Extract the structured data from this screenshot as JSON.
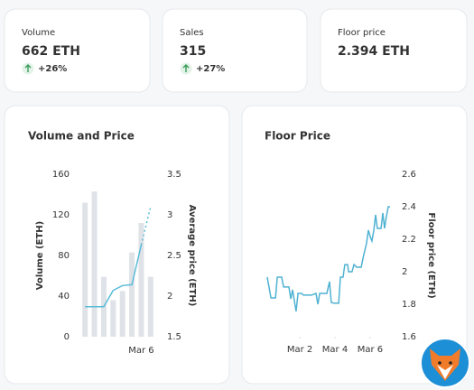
{
  "stats": [
    {
      "label": "Volume",
      "value": "662 ETH",
      "change": "+26%"
    },
    {
      "label": "Sales",
      "value": "315",
      "change": "+27%"
    },
    {
      "label": "Floor price",
      "value": "2.394 ETH"
    }
  ],
  "chart_data": [
    {
      "type": "bar",
      "title": "Volume and Price",
      "ylabel": "Volume (ETH)",
      "y2label": "Average price (ETH)",
      "categories": [
        null,
        null,
        null,
        null,
        null,
        null,
        "Mar 6",
        null
      ],
      "bars": {
        "color": "#dfe2e7",
        "values": [
          132,
          143,
          59,
          36,
          45,
          83,
          112,
          59
        ]
      },
      "line": {
        "color": "#5bbcd8",
        "values": [
          1.87,
          1.87,
          1.87,
          2.07,
          2.13,
          2.14,
          2.63,
          null
        ]
      },
      "line_projection": {
        "color": "#5bbcd8",
        "dashed": true,
        "values": [
          null,
          null,
          null,
          null,
          null,
          null,
          2.63,
          3.1
        ]
      },
      "ylim": [
        0,
        160
      ],
      "yticks": [
        0,
        40,
        80,
        120,
        160
      ],
      "y2lim": [
        1.5,
        3.5
      ],
      "y2ticks": [
        1.5,
        2,
        2.5,
        3,
        3.5
      ]
    },
    {
      "type": "line",
      "title": "Floor Price",
      "y2label": "Floor price (ETH)",
      "x": [
        0.15,
        0.36,
        0.62,
        0.72,
        0.97,
        1.08,
        1.38,
        1.49,
        1.59,
        1.79,
        1.9,
        2.1,
        2.21,
        2.67,
        2.92,
        3.03,
        3.13,
        3.54,
        3.69,
        3.79,
        3.95,
        4.21,
        4.31,
        4.46,
        4.56,
        4.72,
        4.77,
        4.97,
        5.08,
        5.23,
        5.49,
        5.64,
        5.79,
        5.9,
        6.0,
        6.1,
        6.21,
        6.31,
        6.41,
        6.62,
        6.72,
        6.82,
        6.92,
        7.03,
        7.13
      ],
      "values": [
        1.967,
        1.839,
        1.839,
        1.967,
        1.967,
        1.906,
        1.906,
        1.833,
        1.889,
        1.756,
        1.867,
        1.867,
        1.856,
        1.856,
        1.867,
        1.8,
        1.867,
        1.867,
        1.939,
        1.811,
        1.806,
        1.806,
        1.967,
        1.967,
        2.044,
        2.044,
        2.0,
        2.0,
        2.044,
        2.028,
        2.028,
        2.106,
        2.172,
        2.256,
        2.217,
        2.189,
        2.256,
        2.35,
        2.267,
        2.267,
        2.361,
        2.267,
        2.339,
        2.4,
        2.4
      ],
      "color": "#4fb2d2",
      "xlim": [
        0.15,
        7.13
      ],
      "xticks": [
        {
          "value": 2,
          "label": "Mar 2"
        },
        {
          "value": 4,
          "label": "Mar 4"
        },
        {
          "value": 6,
          "label": "Mar 6"
        }
      ],
      "y2lim": [
        1.6,
        2.6
      ],
      "y2ticks": [
        1.6,
        1.8,
        2,
        2.2,
        2.4,
        2.6
      ]
    }
  ]
}
